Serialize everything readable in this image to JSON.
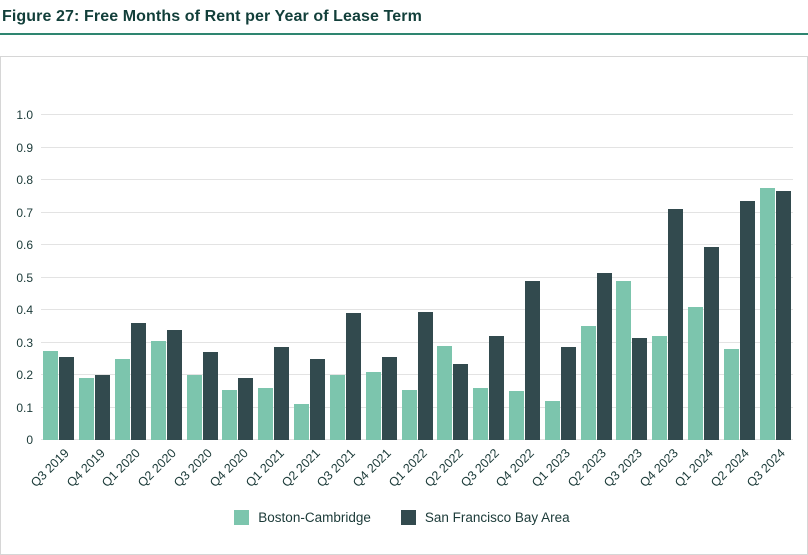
{
  "title": "Figure 27: Free Months of Rent per Year of Lease Term",
  "colors": {
    "title_text": "#123f3a",
    "title_rule": "#2e8570",
    "axis_text": "#1b3a38",
    "gridline": "#e3e3e3",
    "box_border": "#d6d6d6",
    "background": "#ffffff",
    "boston_cambridge": "#7cc5ad",
    "san_francisco_bay_area": "#324a4e"
  },
  "chart_data": {
    "type": "bar",
    "title": "Figure 27: Free Months of Rent per Year of Lease Term",
    "categories": [
      "Q3 2019",
      "Q4 2019",
      "Q1 2020",
      "Q2 2020",
      "Q3 2020",
      "Q4 2020",
      "Q1 2021",
      "Q2 2021",
      "Q3 2021",
      "Q4 2021",
      "Q1 2022",
      "Q2 2022",
      "Q3 2022",
      "Q4 2022",
      "Q1 2023",
      "Q2 2023",
      "Q3 2023",
      "Q4 2023",
      "Q1 2024",
      "Q2 2024",
      "Q3 2024"
    ],
    "series": [
      {
        "name": "Boston-Cambridge",
        "color": "#7cc5ad",
        "values": [
          0.275,
          0.19,
          0.25,
          0.305,
          0.2,
          0.155,
          0.16,
          0.11,
          0.2,
          0.21,
          0.155,
          0.29,
          0.16,
          0.15,
          0.12,
          0.35,
          0.49,
          0.32,
          0.41,
          0.28,
          0.775
        ]
      },
      {
        "name": "San Francisco Bay Area",
        "color": "#324a4e",
        "values": [
          0.255,
          0.2,
          0.36,
          0.34,
          0.27,
          0.19,
          0.285,
          0.25,
          0.39,
          0.255,
          0.395,
          0.235,
          0.32,
          0.49,
          0.285,
          0.515,
          0.315,
          0.71,
          0.595,
          0.735,
          0.765
        ]
      }
    ],
    "xlabel": "",
    "ylabel": "",
    "ylim": [
      0,
      1.0
    ],
    "y_ticks": [
      "1.0",
      "0.9",
      "0.8",
      "0.7",
      "0.6",
      "0.5",
      "0.4",
      "0.3",
      "0.2",
      "0.1",
      "0"
    ],
    "grid": true,
    "legend_position": "bottom"
  }
}
